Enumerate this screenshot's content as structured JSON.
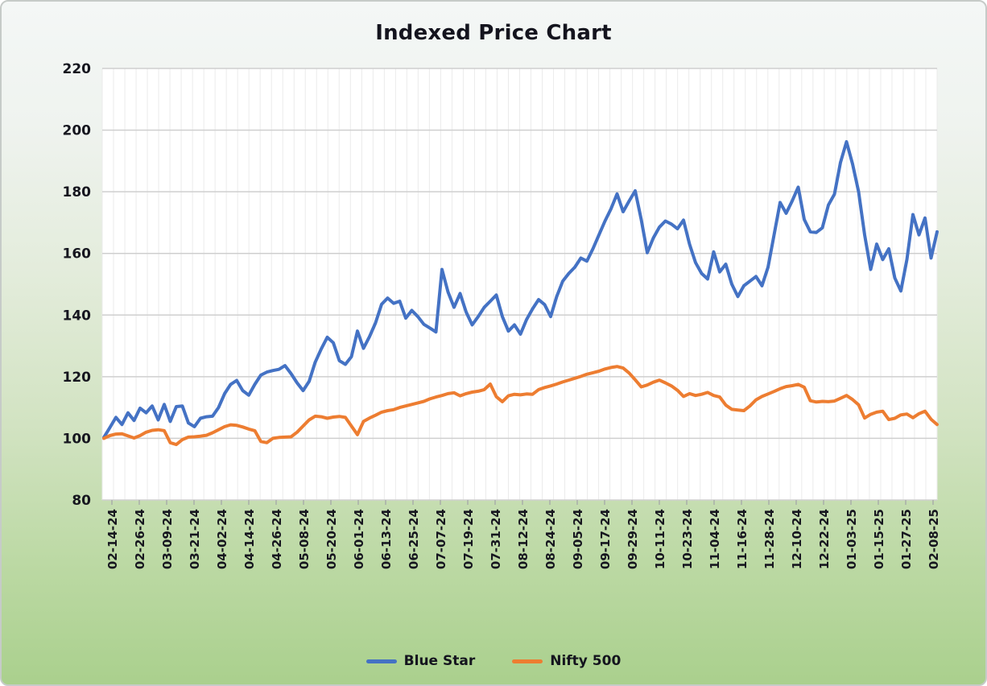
{
  "title": "Indexed Price Chart",
  "legend": {
    "items": [
      {
        "label": "Blue Star",
        "color": "#4472C4"
      },
      {
        "label": "Nifty 500",
        "color": "#ED7D31"
      }
    ]
  },
  "colors": {
    "blue_series": "#4472C4",
    "orange_series": "#ED7D31",
    "plot_background": "#ffffff",
    "h_gridline": "#cfcfcf",
    "v_gridline": "#ebebeb",
    "text": "#14141e",
    "card_gradient_top": "#f4f7f6",
    "card_gradient_bottom": "#aad08d"
  },
  "chart_data": {
    "type": "line",
    "title": "Indexed Price Chart",
    "xlabel": "",
    "ylabel": "",
    "ylim": [
      80,
      220
    ],
    "y_ticks": [
      220,
      200,
      180,
      160,
      140,
      120,
      100,
      80
    ],
    "grid": true,
    "legend_position": "bottom",
    "x_labels": [
      "02-14-24",
      "02-26-24",
      "03-09-24",
      "03-21-24",
      "04-02-24",
      "04-14-24",
      "04-26-24",
      "05-08-24",
      "05-20-24",
      "06-01-24",
      "06-13-24",
      "06-25-24",
      "07-07-24",
      "07-19-24",
      "07-31-24",
      "08-12-24",
      "08-24-24",
      "09-05-24",
      "09-17-24",
      "09-29-24",
      "10-11-24",
      "10-23-24",
      "11-04-24",
      "11-16-24",
      "11-28-24",
      "12-10-24",
      "12-22-24",
      "01-03-25",
      "01-15-25",
      "01-27-25",
      "02-08-25"
    ],
    "series": [
      {
        "name": "Blue Star",
        "color": "#4472C4",
        "values": [
          100.3,
          103.5,
          106.8,
          104.5,
          108.3,
          105.8,
          109.8,
          108.3,
          110.5,
          106.0,
          111.0,
          105.5,
          110.3,
          110.5,
          105.0,
          103.8,
          106.5,
          107.0,
          107.2,
          110.0,
          114.5,
          117.5,
          118.8,
          115.5,
          114.0,
          117.5,
          120.5,
          121.5,
          122.0,
          122.4,
          123.6,
          121.0,
          118.0,
          115.5,
          118.5,
          124.7,
          129.0,
          132.8,
          131.0,
          125.2,
          124.0,
          126.5,
          134.8,
          129.2,
          133.0,
          137.5,
          143.5,
          145.5,
          143.8,
          144.5,
          139.0,
          141.5,
          139.5,
          137.0,
          135.8,
          134.5,
          154.8,
          147.5,
          142.5,
          147.0,
          141.0,
          136.8,
          139.5,
          142.5,
          144.5,
          146.5,
          139.5,
          134.8,
          136.8,
          133.8,
          138.5,
          142.0,
          145.0,
          143.4,
          139.5,
          146.0,
          151.0,
          153.5,
          155.5,
          158.5,
          157.5,
          161.5,
          166.0,
          170.5,
          174.5,
          179.3,
          173.5,
          177.0,
          180.3,
          171.0,
          160.2,
          165.0,
          168.5,
          170.5,
          169.5,
          168.0,
          170.8,
          163.0,
          157.0,
          153.5,
          151.7,
          160.5,
          154.0,
          156.5,
          150.0,
          146.0,
          149.5,
          151.0,
          152.5,
          149.5,
          155.5,
          166.0,
          176.5,
          173.0,
          177.0,
          181.5,
          171.0,
          167.0,
          166.8,
          168.3,
          175.7,
          179.2,
          189.5,
          196.2,
          189.0,
          180.0,
          166.0,
          154.8,
          163.0,
          158.0,
          161.5,
          152.0,
          147.8,
          158.0,
          172.6,
          166.0,
          171.5,
          158.5,
          167.0
        ]
      },
      {
        "name": "Nifty 500",
        "color": "#ED7D31",
        "values": [
          100.0,
          100.9,
          101.4,
          101.5,
          100.8,
          100.1,
          100.9,
          102.0,
          102.6,
          102.8,
          102.5,
          98.6,
          98.0,
          99.6,
          100.4,
          100.5,
          100.7,
          101.0,
          101.8,
          102.8,
          103.8,
          104.4,
          104.2,
          103.7,
          103.0,
          102.5,
          99.0,
          98.6,
          100.0,
          100.3,
          100.4,
          100.5,
          102.0,
          104.0,
          106.0,
          107.2,
          107.0,
          106.5,
          106.9,
          107.1,
          106.8,
          104.0,
          101.2,
          105.5,
          106.6,
          107.5,
          108.5,
          109.0,
          109.3,
          110.0,
          110.5,
          111.0,
          111.5,
          112.0,
          112.8,
          113.4,
          113.9,
          114.5,
          114.8,
          113.8,
          114.5,
          115.0,
          115.3,
          115.8,
          117.6,
          113.5,
          111.9,
          113.8,
          114.3,
          114.1,
          114.4,
          114.3,
          115.8,
          116.5,
          117.0,
          117.6,
          118.3,
          118.9,
          119.5,
          120.1,
          120.8,
          121.3,
          121.8,
          122.5,
          123.0,
          123.3,
          122.8,
          121.2,
          119.0,
          116.7,
          117.3,
          118.2,
          118.9,
          118.0,
          117.0,
          115.6,
          113.6,
          114.5,
          113.9,
          114.3,
          114.9,
          113.9,
          113.4,
          110.8,
          109.4,
          109.2,
          109.0,
          110.5,
          112.5,
          113.6,
          114.4,
          115.2,
          116.1,
          116.8,
          117.1,
          117.5,
          116.6,
          112.2,
          111.8,
          112.0,
          111.9,
          112.1,
          113.0,
          113.9,
          112.6,
          110.9,
          106.6,
          107.8,
          108.5,
          108.8,
          106.1,
          106.5,
          107.6,
          107.9,
          106.7,
          108.0,
          108.8,
          106.2,
          104.5
        ]
      }
    ]
  }
}
